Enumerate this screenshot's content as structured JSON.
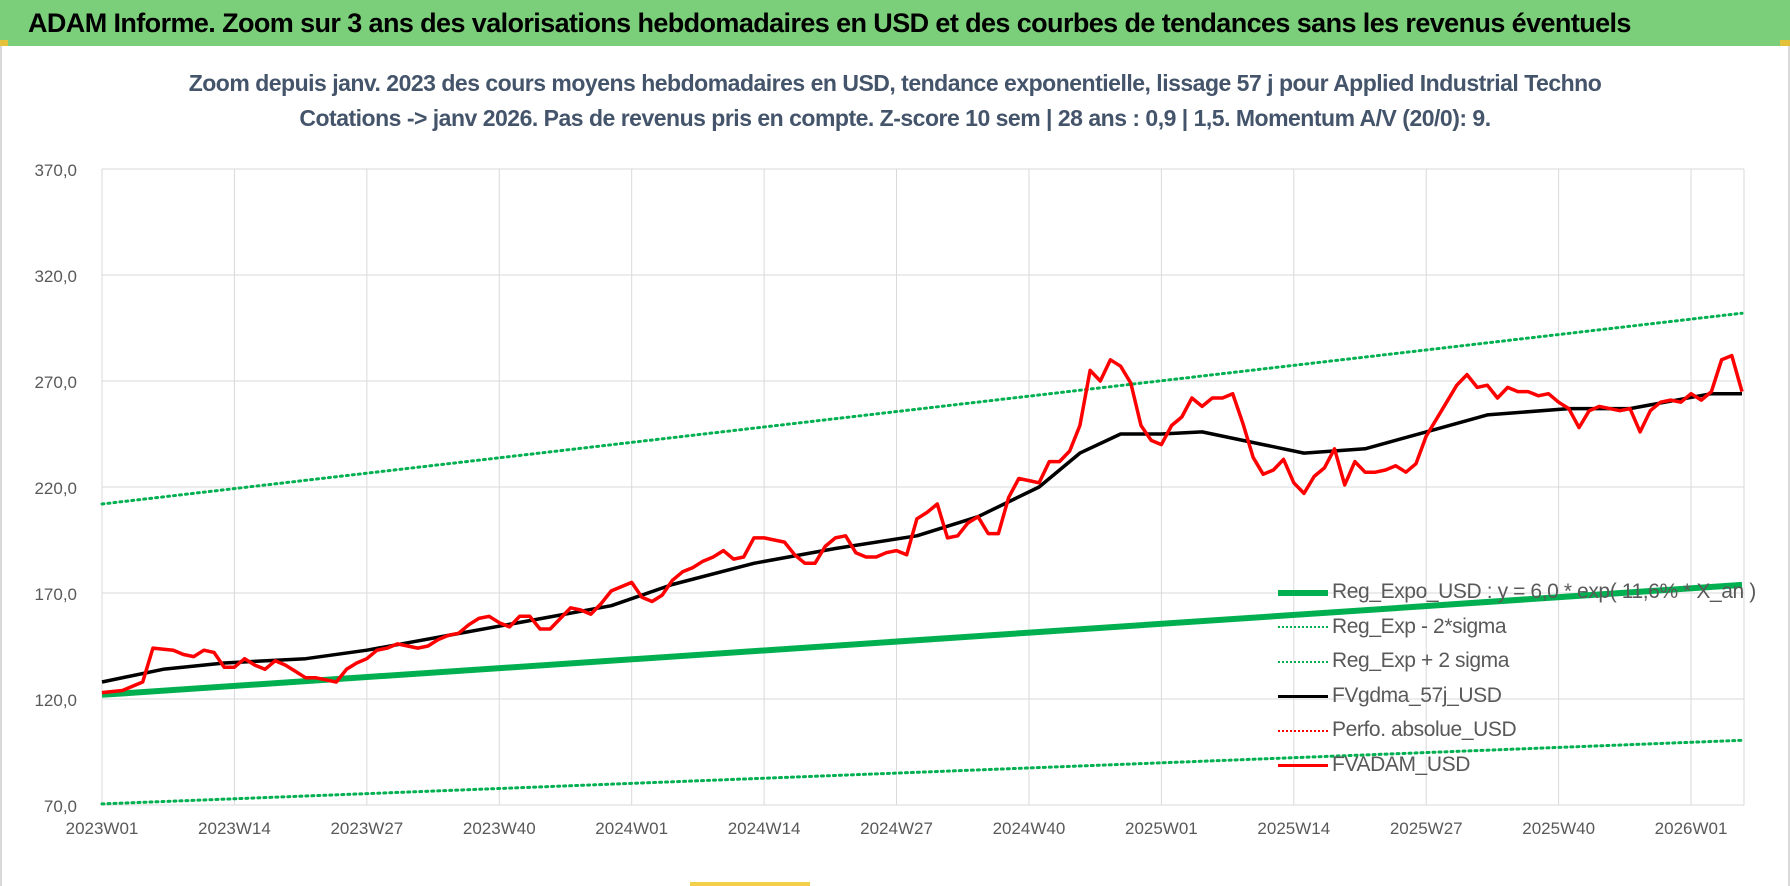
{
  "banner": {
    "title": "ADAM Informe. Zoom sur 3 ans des valorisations hebdomadaires en USD et des courbes de tendances sans les revenus éventuels"
  },
  "chart_data": {
    "type": "line",
    "title": "Zoom depuis janv. 2023 des cours moyens hebdomadaires en USD, tendance exponentielle, lissage 57 j pour Applied Industrial Techno",
    "subtitle": "Cotations -> janv 2026. Pas de revenus pris en compte. Z-score 10 sem | 28 ans : 0,9 | 1,5. Momentum A/V (20/0): 9.",
    "xlabel": "",
    "ylabel": "",
    "ylim": [
      70,
      370
    ],
    "yticks": [
      "370,0",
      "320,0",
      "270,0",
      "220,0",
      "170,0",
      "120,0",
      "70,0"
    ],
    "xticks": [
      "2023W01",
      "2023W14",
      "2023W27",
      "2023W40",
      "2024W01",
      "2024W14",
      "2024W27",
      "2024W40",
      "2025W01",
      "2025W14",
      "2025W27",
      "2025W40",
      "2026W01"
    ],
    "xtick_week_index": [
      0,
      13,
      26,
      39,
      52,
      65,
      78,
      91,
      104,
      117,
      130,
      143,
      156
    ],
    "x_last_week_index": 161,
    "grid": true,
    "legend_position": "bottom-right, inside plot",
    "series": [
      {
        "name": "Reg_Expo_USD : y = 6,0 * exp( 11,6% * X_an )",
        "style": "solid-thick",
        "color": "#00b050",
        "x": [
          0,
          161
        ],
        "values": [
          122.0,
          173.8
        ]
      },
      {
        "name": "Reg_Exp - 2*sigma",
        "style": "dotted",
        "color": "#00b050",
        "x": [
          0,
          161
        ],
        "values": [
          70.5,
          100.5
        ]
      },
      {
        "name": "Reg_Exp + 2 sigma",
        "style": "dotted",
        "color": "#00b050",
        "x": [
          0,
          161
        ],
        "values": [
          212.0,
          302.0
        ]
      },
      {
        "name": "FVgdma_57j_USD",
        "style": "solid",
        "color": "#000000",
        "x": [
          0,
          6,
          12,
          20,
          26,
          34,
          42,
          50,
          56,
          64,
          72,
          80,
          86,
          92,
          96,
          100,
          104,
          108,
          114,
          118,
          124,
          130,
          136,
          144,
          150,
          158,
          161
        ],
        "values": [
          128,
          134,
          137,
          139,
          143,
          150,
          157,
          164,
          174,
          184,
          191,
          197,
          206,
          220,
          236,
          245,
          245,
          246,
          240,
          236,
          238,
          246,
          254,
          257,
          257,
          264,
          264
        ]
      },
      {
        "name": "Perfo. absolue_USD",
        "style": "dotted",
        "color": "#ff0000",
        "x": [],
        "values": []
      },
      {
        "name": "FVADAM_USD",
        "style": "solid",
        "color": "#ff0000",
        "x": [
          0,
          2,
          4,
          5,
          7,
          8,
          9,
          10,
          11,
          12,
          13,
          14,
          15,
          16,
          17,
          18,
          19,
          20,
          21,
          22,
          23,
          24,
          25,
          26,
          27,
          28,
          29,
          30,
          31,
          32,
          33,
          34,
          35,
          36,
          37,
          38,
          39,
          40,
          41,
          42,
          43,
          44,
          45,
          46,
          47,
          48,
          49,
          50,
          51,
          52,
          53,
          54,
          55,
          56,
          57,
          58,
          59,
          60,
          61,
          62,
          63,
          64,
          65,
          66,
          67,
          68,
          69,
          70,
          71,
          72,
          73,
          74,
          75,
          76,
          77,
          78,
          79,
          80,
          81,
          82,
          83,
          84,
          85,
          86,
          87,
          88,
          89,
          90,
          91,
          92,
          93,
          94,
          95,
          96,
          97,
          98,
          99,
          100,
          101,
          102,
          103,
          104,
          105,
          106,
          107,
          108,
          109,
          110,
          111,
          112,
          113,
          114,
          115,
          116,
          117,
          118,
          119,
          120,
          121,
          122,
          123,
          124,
          125,
          126,
          127,
          128,
          129,
          130,
          131,
          132,
          133,
          134,
          135,
          136,
          137,
          138,
          139,
          140,
          141,
          142,
          143,
          144,
          145,
          146,
          147,
          148,
          149,
          150,
          151,
          152,
          153,
          154,
          155,
          156,
          157,
          158,
          159,
          160,
          161
        ],
        "values": [
          123,
          124,
          128,
          144,
          143,
          141,
          140,
          143,
          142,
          135,
          135,
          139,
          136,
          134,
          138,
          136,
          133,
          130,
          130,
          129,
          128,
          134,
          137,
          139,
          143,
          144,
          146,
          145,
          144,
          145,
          148,
          150,
          151,
          155,
          158,
          159,
          156,
          154,
          159,
          159,
          153,
          153,
          158,
          163,
          162,
          160,
          165,
          171,
          173,
          175,
          168,
          166,
          169,
          176,
          180,
          182,
          185,
          187,
          190,
          186,
          187,
          196,
          196,
          195,
          194,
          188,
          184,
          184,
          192,
          196,
          197,
          189,
          187,
          187,
          189,
          190,
          188,
          205,
          208,
          212,
          196,
          197,
          203,
          206,
          198,
          198,
          215,
          224,
          223,
          222,
          232,
          232,
          237,
          249,
          275,
          270,
          280,
          277,
          269,
          249,
          242,
          240,
          249,
          253,
          262,
          258,
          262,
          262,
          264,
          250,
          234,
          226,
          228,
          233,
          222,
          217,
          225,
          229,
          238,
          221,
          232,
          227,
          227,
          228,
          230,
          227,
          231,
          244,
          252,
          260,
          268,
          273,
          267,
          268,
          262,
          267,
          265,
          265,
          263,
          264,
          260,
          257,
          248,
          256,
          258,
          257,
          256,
          257,
          246,
          256,
          260,
          261,
          260,
          264,
          261,
          265,
          280,
          282,
          265
        ]
      }
    ]
  }
}
